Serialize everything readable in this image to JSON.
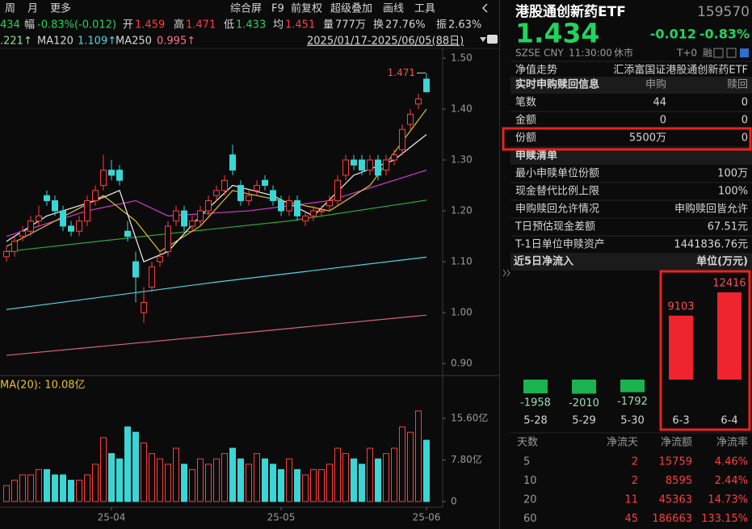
{
  "toolbar": {
    "left": [
      "周",
      "月",
      "更多"
    ],
    "right": [
      "综合屏",
      "F9",
      "前复权",
      "超级叠加",
      "画线",
      "工具"
    ]
  },
  "quote_bar": [
    {
      "value": "434"
    },
    {
      "label": "幅",
      "value": "-0.83%(-0.012)"
    },
    {
      "label": "开",
      "value": "1.459"
    },
    {
      "label": "高",
      "value": "1.471"
    },
    {
      "label": "低",
      "value": "1.433"
    },
    {
      "label": "均",
      "value": "1.451"
    },
    {
      "label": "量",
      "value": "777万"
    },
    {
      "label": "换",
      "value": "27.76%"
    },
    {
      "label": "振",
      "value": "2.63%"
    }
  ],
  "ma_legend": [
    {
      "value": ".221↑"
    },
    {
      "label": "MA120",
      "value": "1.109↑"
    },
    {
      "label": "MA250",
      "value": "0.995↑"
    }
  ],
  "date_range": "2025/01/17-2025/06/05(88日)",
  "header": {
    "name": "港股通创新药ETF",
    "code": "159570",
    "price": "1.434",
    "change": "-0.012",
    "change_pct": "-0.83%",
    "exchange": "SZSE",
    "currency": "CNY",
    "time": "11:30:00",
    "status": "休市",
    "tags": [
      "T+0",
      "融"
    ]
  },
  "info": {
    "nav_label": "净值走势",
    "fund_name": "汇添富国证港股通创新药ETF",
    "realtime": {
      "title": "实时申购赎回信息",
      "columns": [
        "申购",
        "赎回"
      ],
      "rows": [
        [
          "笔数",
          "44",
          "0"
        ],
        [
          "金额",
          "0",
          "0"
        ],
        [
          "份额",
          "5500万",
          "0"
        ]
      ]
    },
    "list": {
      "title": "申赎清单",
      "rows": [
        [
          "最小申赎单位份额",
          "100万"
        ],
        [
          "现金替代比例上限",
          "100%"
        ],
        [
          "申购赎回允许情况",
          "申购赎回皆允许"
        ],
        [
          "T日预估现金差额",
          "67.51元"
        ],
        [
          "T-1日单位申赎资产",
          "1441836.76元"
        ]
      ]
    }
  },
  "inflow_table": {
    "columns": [
      "天数",
      "净流天",
      "净流额",
      "净流率"
    ],
    "rows": [
      [
        "5",
        "2",
        "15759",
        "4.46%"
      ],
      [
        "10",
        "2",
        "8595",
        "2.44%"
      ],
      [
        "20",
        "11",
        "45363",
        "14.73%"
      ],
      [
        "60",
        "45",
        "186663",
        "133.15%"
      ]
    ]
  },
  "chart_data": [
    {
      "type": "candlestick",
      "up_color": "#ff3e3e",
      "down_color": "#3ad6d6",
      "open": [
        1.11,
        1.12,
        1.15,
        1.16,
        1.18,
        1.23,
        1.22,
        1.2,
        1.17,
        1.16,
        1.18,
        1.22,
        1.25,
        1.28,
        1.28,
        1.16,
        1.1,
        1.0,
        1.05,
        1.1,
        1.12,
        1.18,
        1.2,
        1.17,
        1.18,
        1.2,
        1.23,
        1.24,
        1.31,
        1.25,
        1.22,
        1.24,
        1.26,
        1.24,
        1.22,
        1.2,
        1.22,
        1.18,
        1.19,
        1.2,
        1.21,
        1.22,
        1.27,
        1.3,
        1.3,
        1.28,
        1.3,
        1.28,
        1.3,
        1.32,
        1.37,
        1.41,
        1.459
      ],
      "high": [
        1.13,
        1.15,
        1.17,
        1.19,
        1.21,
        1.24,
        1.23,
        1.21,
        1.18,
        1.19,
        1.23,
        1.25,
        1.31,
        1.3,
        1.29,
        1.18,
        1.12,
        1.05,
        1.1,
        1.12,
        1.18,
        1.21,
        1.21,
        1.19,
        1.21,
        1.23,
        1.25,
        1.27,
        1.33,
        1.26,
        1.24,
        1.26,
        1.27,
        1.25,
        1.23,
        1.23,
        1.23,
        1.2,
        1.21,
        1.21,
        1.23,
        1.27,
        1.31,
        1.31,
        1.31,
        1.31,
        1.31,
        1.31,
        1.32,
        1.37,
        1.4,
        1.43,
        1.471
      ],
      "low": [
        1.1,
        1.11,
        1.14,
        1.15,
        1.17,
        1.21,
        1.19,
        1.16,
        1.15,
        1.15,
        1.17,
        1.21,
        1.24,
        1.26,
        1.25,
        1.14,
        1.02,
        0.98,
        1.04,
        1.09,
        1.11,
        1.17,
        1.16,
        1.16,
        1.17,
        1.19,
        1.22,
        1.23,
        1.27,
        1.21,
        1.21,
        1.23,
        1.24,
        1.21,
        1.19,
        1.19,
        1.18,
        1.17,
        1.18,
        1.19,
        1.2,
        1.21,
        1.26,
        1.28,
        1.27,
        1.27,
        1.26,
        1.27,
        1.29,
        1.31,
        1.36,
        1.4,
        1.433
      ],
      "close": [
        1.12,
        1.14,
        1.16,
        1.18,
        1.19,
        1.22,
        1.2,
        1.17,
        1.16,
        1.18,
        1.22,
        1.24,
        1.28,
        1.27,
        1.26,
        1.15,
        1.07,
        1.02,
        1.09,
        1.11,
        1.17,
        1.2,
        1.17,
        1.18,
        1.2,
        1.22,
        1.24,
        1.26,
        1.28,
        1.22,
        1.23,
        1.25,
        1.25,
        1.22,
        1.2,
        1.22,
        1.19,
        1.19,
        1.2,
        1.2,
        1.22,
        1.26,
        1.3,
        1.29,
        1.28,
        1.3,
        1.27,
        1.3,
        1.31,
        1.36,
        1.39,
        1.42,
        1.434
      ],
      "ylim": [
        0.881,
        1.516
      ],
      "yticks": [
        {
          "value": 0.9,
          "label": "0.90"
        },
        {
          "value": 1.0,
          "label": "1.00"
        },
        {
          "value": 1.1,
          "label": "1.10"
        },
        {
          "value": 1.2,
          "label": "1.20"
        },
        {
          "value": 1.3,
          "label": "1.30"
        },
        {
          "value": 1.4,
          "label": "1.40"
        },
        {
          "value": 1.5,
          "label": "1.50"
        }
      ],
      "lines": [
        {
          "color": "#d9627f",
          "x": [
            0,
            26,
            52
          ],
          "values": [
            0.916,
            0.955,
            0.995
          ]
        },
        {
          "color": "#4fd8e8",
          "x": [
            0,
            26,
            52
          ],
          "values": [
            1.006,
            1.06,
            1.109
          ]
        },
        {
          "color": "#2fa83a",
          "x": [
            0,
            17,
            35,
            52
          ],
          "values": [
            1.12,
            1.15,
            1.18,
            1.221
          ]
        },
        {
          "color": "#d43ad4",
          "x": [
            0,
            10,
            16,
            20,
            30,
            40,
            52
          ],
          "values": [
            1.15,
            1.2,
            1.22,
            1.19,
            1.2,
            1.22,
            1.28
          ]
        },
        {
          "color": "#e6c229",
          "x": [
            0,
            6,
            12,
            16,
            19,
            24,
            28,
            34,
            40,
            45,
            52
          ],
          "values": [
            1.13,
            1.18,
            1.23,
            1.18,
            1.12,
            1.17,
            1.24,
            1.22,
            1.2,
            1.25,
            1.4
          ]
        },
        {
          "color": "#f2f2f2",
          "x": [
            0,
            5,
            11,
            14,
            17,
            20,
            24,
            28,
            33,
            38,
            43,
            48,
            52
          ],
          "values": [
            1.14,
            1.19,
            1.22,
            1.24,
            1.1,
            1.12,
            1.19,
            1.25,
            1.23,
            1.19,
            1.27,
            1.3,
            1.35
          ]
        }
      ]
    },
    {
      "type": "bar",
      "title": "MA(20): 10.08亿",
      "categories": [
        null,
        null,
        null,
        null,
        null,
        null,
        null,
        null,
        null,
        null,
        null,
        null,
        null,
        "25-04",
        null,
        null,
        null,
        null,
        null,
        null,
        null,
        null,
        null,
        null,
        null,
        null,
        null,
        null,
        null,
        null,
        null,
        null,
        null,
        null,
        "25-05",
        null,
        null,
        null,
        null,
        null,
        null,
        null,
        null,
        null,
        null,
        null,
        null,
        null,
        null,
        null,
        null,
        null,
        "25-06"
      ],
      "values": [
        3,
        4,
        5,
        5,
        6,
        6,
        5,
        5,
        4,
        4,
        5,
        7,
        12,
        9,
        8,
        14,
        13,
        11,
        9,
        8,
        7,
        10,
        7,
        6,
        8,
        7,
        8,
        9,
        10,
        8,
        7,
        9,
        8,
        7,
        6,
        8,
        6,
        5,
        6,
        6,
        7,
        10,
        9,
        8,
        7,
        10,
        8,
        9,
        10,
        14,
        13,
        17,
        11.5
      ],
      "ylim": [
        0,
        20
      ],
      "yticks": [
        0,
        {
          "value": 7.8,
          "label": "7.80亿"
        },
        {
          "value": 15.6,
          "label": "15.60亿"
        }
      ]
    },
    {
      "type": "bar",
      "title": "近5日净流入",
      "unit": "单位(万元)",
      "categories": [
        "5-28",
        "5-29",
        "5-30",
        "6-3",
        "6-4"
      ],
      "values": [
        -1958,
        -2010,
        -1792,
        9103,
        12416
      ],
      "up_color": "#f0242e",
      "down_color": "#1bb34f"
    }
  ]
}
